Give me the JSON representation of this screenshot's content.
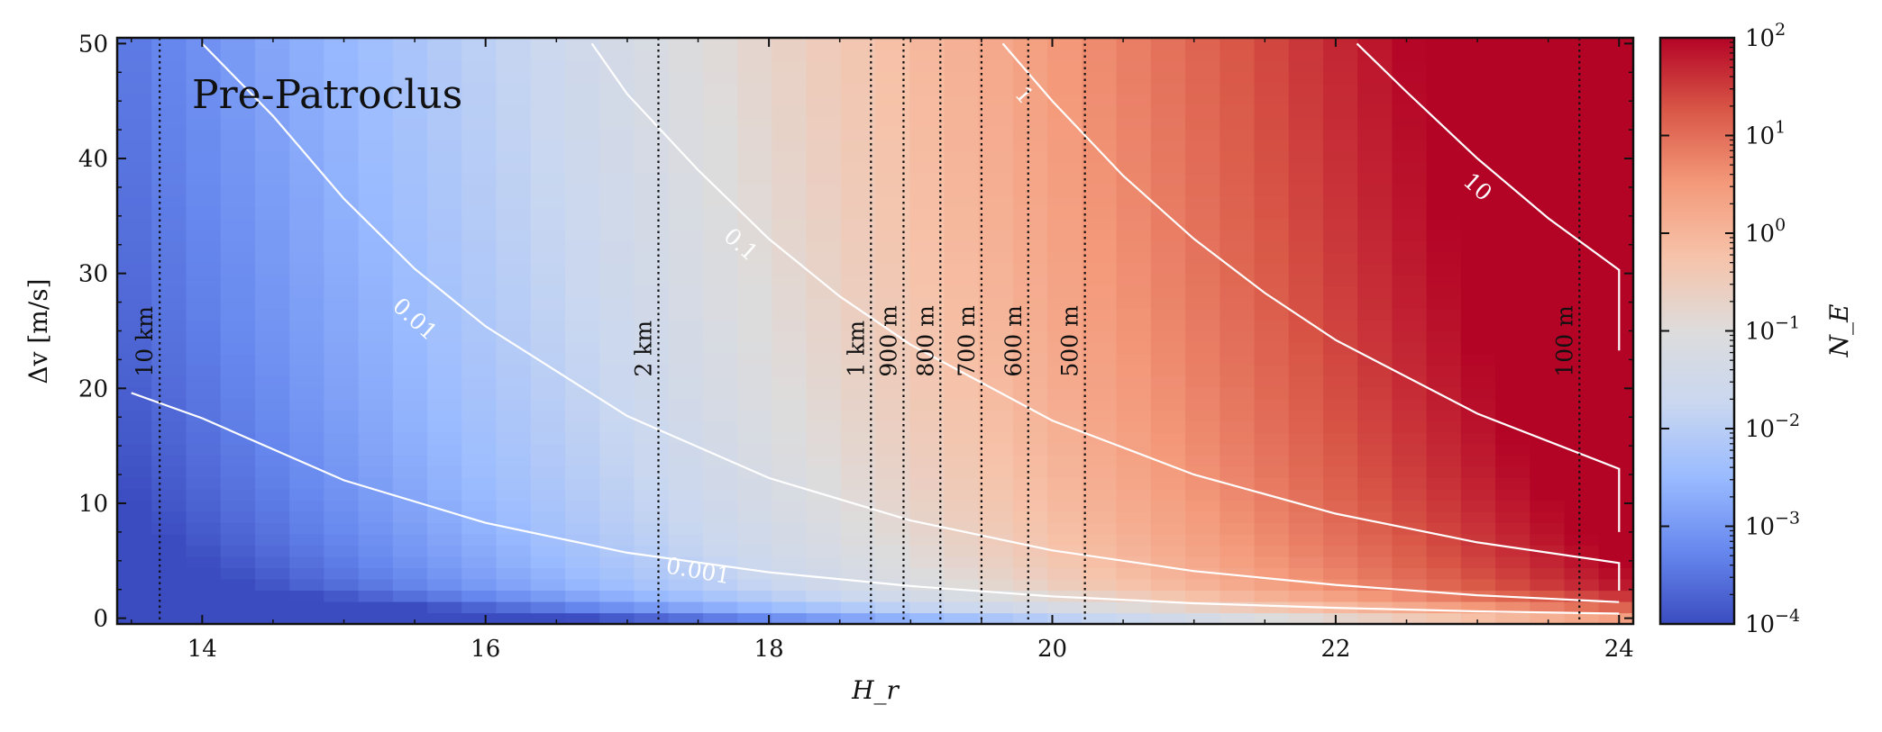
{
  "chart_data": {
    "type": "heatmap",
    "title": "Pre-Patroclus",
    "xlabel": "H_r",
    "ylabel": "Δv [m/s]",
    "xlim": [
      13.4,
      24.1
    ],
    "ylim": [
      -0.5,
      50.5
    ],
    "x_ticks": [
      14,
      16,
      18,
      20,
      22,
      24
    ],
    "x_tick_labels": [
      "14",
      "16",
      "18",
      "20",
      "22",
      "24"
    ],
    "y_ticks": [
      0,
      10,
      20,
      30,
      40,
      50
    ],
    "y_tick_labels": [
      "0",
      "10",
      "20",
      "30",
      "40",
      "50"
    ],
    "colorbar": {
      "label": "N_E",
      "scale": "log",
      "range": [
        0.0001,
        100
      ],
      "ticks": [
        0.0001,
        0.001,
        0.01,
        0.1,
        1,
        10,
        100
      ],
      "tick_labels": [
        "10^−4",
        "10^−3",
        "10^−2",
        "10^−1",
        "10^0",
        "10^1",
        "10^2"
      ],
      "colormap": "coolwarm",
      "colormap_stops": [
        "#3b4cc0",
        "#6788ee",
        "#9abbff",
        "#c9d7f0",
        "#dddcdc",
        "#f6c3aa",
        "#f49a7b",
        "#d95847",
        "#b40426"
      ]
    },
    "contours": [
      {
        "label": "0.001",
        "level": 0.001,
        "points": [
          [
            13.5,
            19.6
          ],
          [
            14.0,
            17.4
          ],
          [
            15.0,
            12.0
          ],
          [
            16.0,
            8.3
          ],
          [
            17.0,
            5.7
          ],
          [
            18.0,
            4.0
          ],
          [
            19.0,
            2.8
          ],
          [
            20.0,
            1.9
          ],
          [
            21.0,
            1.3
          ],
          [
            22.0,
            0.9
          ],
          [
            23.0,
            0.6
          ],
          [
            24.0,
            0.4
          ]
        ]
      },
      {
        "label": "0.01",
        "level": 0.01,
        "points": [
          [
            14.0,
            50.0
          ],
          [
            14.5,
            43.7
          ],
          [
            15.0,
            36.5
          ],
          [
            15.5,
            30.4
          ],
          [
            16.0,
            25.4
          ],
          [
            17.0,
            17.6
          ],
          [
            18.0,
            12.2
          ],
          [
            19.0,
            8.5
          ],
          [
            20.0,
            5.9
          ],
          [
            21.0,
            4.1
          ],
          [
            22.0,
            2.9
          ],
          [
            23.0,
            2.0
          ],
          [
            24.0,
            1.4
          ]
        ]
      },
      {
        "label": "0.1",
        "level": 0.1,
        "points": [
          [
            16.75,
            50.0
          ],
          [
            17.0,
            45.6
          ],
          [
            17.5,
            39.0
          ],
          [
            18.0,
            33.0
          ],
          [
            18.5,
            28.0
          ],
          [
            19.0,
            23.8
          ],
          [
            20.0,
            17.2
          ],
          [
            21.0,
            12.5
          ],
          [
            22.0,
            9.1
          ],
          [
            23.0,
            6.6
          ],
          [
            24.0,
            4.8
          ],
          [
            24.0,
            2.4
          ]
        ]
      },
      {
        "label": "1",
        "level": 1,
        "points": [
          [
            19.65,
            50.0
          ],
          [
            20.0,
            45.0
          ],
          [
            20.5,
            38.5
          ],
          [
            21.0,
            33.0
          ],
          [
            21.5,
            28.3
          ],
          [
            22.0,
            24.2
          ],
          [
            23.0,
            17.8
          ],
          [
            24.0,
            13.0
          ],
          [
            24.0,
            7.5
          ]
        ]
      },
      {
        "label": "10",
        "level": 10,
        "points": [
          [
            22.15,
            50.0
          ],
          [
            22.5,
            45.8
          ],
          [
            23.0,
            40.0
          ],
          [
            23.5,
            34.8
          ],
          [
            24.0,
            30.3
          ],
          [
            24.0,
            23.3
          ]
        ]
      }
    ],
    "vertical_lines": [
      {
        "label": "10 km",
        "x": 13.7
      },
      {
        "label": "2 km",
        "x": 17.22
      },
      {
        "label": "1 km",
        "x": 18.72
      },
      {
        "label": "900 m",
        "x": 18.95
      },
      {
        "label": "800 m",
        "x": 19.21
      },
      {
        "label": "700 m",
        "x": 19.5
      },
      {
        "label": "600 m",
        "x": 19.83
      },
      {
        "label": "500 m",
        "x": 20.23
      },
      {
        "label": "100 m",
        "x": 23.72
      }
    ],
    "grid": false,
    "legend": "none"
  }
}
